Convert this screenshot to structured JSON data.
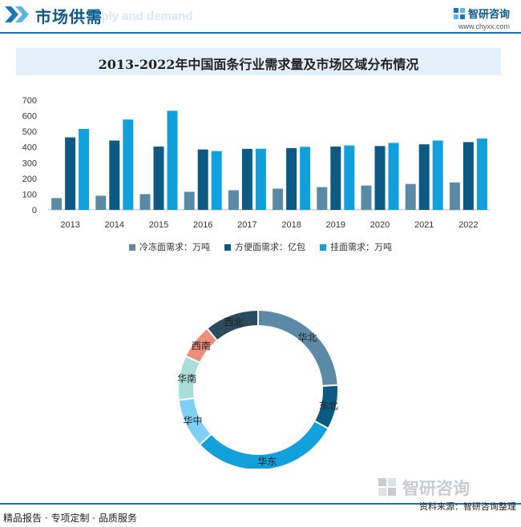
{
  "header": {
    "title": "市场供需",
    "bg_text": "Supply and demand",
    "brand_name": "智研咨询",
    "brand_url": "www.chyxx.com"
  },
  "chart_title": "2013-2022年中国面条行业需求量及市场区域分布情况",
  "chart_data": [
    {
      "type": "bar",
      "categories": [
        "2013",
        "2014",
        "2015",
        "2016",
        "2017",
        "2018",
        "2019",
        "2020",
        "2021",
        "2022"
      ],
      "series": [
        {
          "name": "冷冻面需求：万吨",
          "color": "#5b8aa6",
          "values": [
            75,
            90,
            100,
            115,
            125,
            135,
            145,
            155,
            165,
            175
          ]
        },
        {
          "name": "方便面需求：亿包",
          "color": "#0c5a84",
          "values": [
            462,
            442,
            404,
            385,
            389,
            394,
            404,
            407,
            418,
            432
          ]
        },
        {
          "name": "挂面需求：万吨",
          "color": "#12a0dc",
          "values": [
            516,
            576,
            632,
            375,
            390,
            402,
            411,
            427,
            442,
            455
          ]
        }
      ],
      "yticks": [
        0,
        100,
        200,
        300,
        400,
        500,
        600,
        700
      ],
      "ylim": [
        0,
        700
      ],
      "grid": false,
      "legend_position": "bottom"
    },
    {
      "type": "pie",
      "donut": true,
      "slices": [
        {
          "label": "华北",
          "value": 24,
          "color": "#5b8aa6"
        },
        {
          "label": "东北",
          "value": 9,
          "color": "#0c5a84"
        },
        {
          "label": "华东",
          "value": 30,
          "color": "#12a0dc"
        },
        {
          "label": "华中",
          "value": 10,
          "color": "#7fd0f5"
        },
        {
          "label": "华南",
          "value": 9,
          "color": "#a9ded8"
        },
        {
          "label": "西南",
          "value": 7,
          "color": "#ee8e7a"
        },
        {
          "label": "西北",
          "value": 11,
          "color": "#2b4a5e"
        }
      ]
    }
  ],
  "footer": {
    "left": "精品报告 · 专项定制 · 品质服务",
    "source": "资料来源：智研咨询整理",
    "brand_name": "智研咨询"
  }
}
